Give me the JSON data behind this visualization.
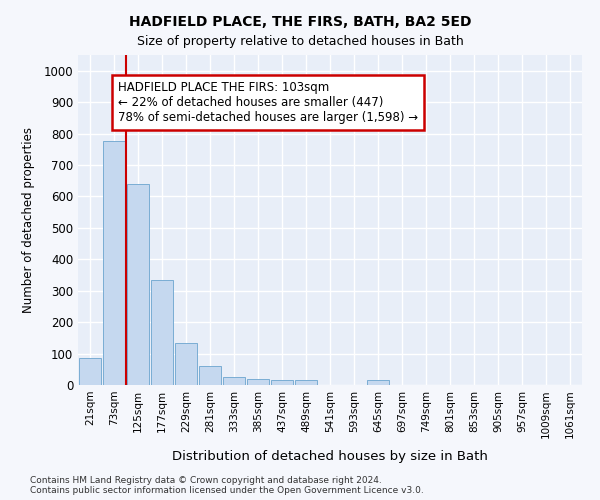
{
  "title": "HADFIELD PLACE, THE FIRS, BATH, BA2 5ED",
  "subtitle": "Size of property relative to detached houses in Bath",
  "xlabel": "Distribution of detached houses by size in Bath",
  "ylabel": "Number of detached properties",
  "bar_color": "#c5d8ef",
  "bar_edge_color": "#7aadd4",
  "background_color": "#e8eef8",
  "grid_color": "#ffffff",
  "fig_bg_color": "#f5f7fc",
  "categories": [
    "21sqm",
    "73sqm",
    "125sqm",
    "177sqm",
    "229sqm",
    "281sqm",
    "333sqm",
    "385sqm",
    "437sqm",
    "489sqm",
    "541sqm",
    "593sqm",
    "645sqm",
    "697sqm",
    "749sqm",
    "801sqm",
    "853sqm",
    "905sqm",
    "957sqm",
    "1009sqm",
    "1061sqm"
  ],
  "values": [
    85,
    775,
    640,
    335,
    135,
    60,
    25,
    20,
    15,
    15,
    0,
    0,
    15,
    0,
    0,
    0,
    0,
    0,
    0,
    0,
    0
  ],
  "ylim": [
    0,
    1050
  ],
  "yticks": [
    0,
    100,
    200,
    300,
    400,
    500,
    600,
    700,
    800,
    900,
    1000
  ],
  "vline_x": 1.5,
  "vline_color": "#cc0000",
  "annotation_text": "HADFIELD PLACE THE FIRS: 103sqm\n← 22% of detached houses are smaller (447)\n78% of semi-detached houses are larger (1,598) →",
  "annotation_box_color": "#ffffff",
  "annotation_border_color": "#cc0000",
  "footnote": "Contains HM Land Registry data © Crown copyright and database right 2024.\nContains public sector information licensed under the Open Government Licence v3.0."
}
